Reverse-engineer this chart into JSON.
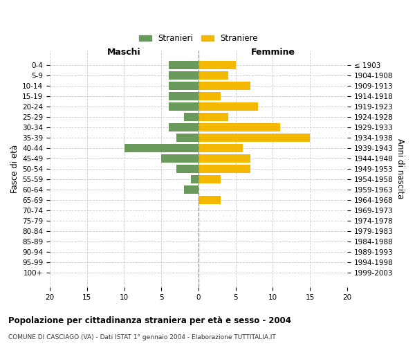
{
  "age_groups": [
    "0-4",
    "5-9",
    "10-14",
    "15-19",
    "20-24",
    "25-29",
    "30-34",
    "35-39",
    "40-44",
    "45-49",
    "50-54",
    "55-59",
    "60-64",
    "65-69",
    "70-74",
    "75-79",
    "80-84",
    "85-89",
    "90-94",
    "95-99",
    "100+"
  ],
  "birth_years": [
    "1999-2003",
    "1994-1998",
    "1989-1993",
    "1984-1988",
    "1979-1983",
    "1974-1978",
    "1969-1973",
    "1964-1968",
    "1959-1963",
    "1954-1958",
    "1949-1953",
    "1944-1948",
    "1939-1943",
    "1934-1938",
    "1929-1933",
    "1924-1928",
    "1919-1923",
    "1914-1918",
    "1909-1913",
    "1904-1908",
    "≤ 1903"
  ],
  "maschi": [
    4,
    4,
    4,
    4,
    4,
    2,
    4,
    3,
    10,
    5,
    3,
    1,
    2,
    0,
    0,
    0,
    0,
    0,
    0,
    0,
    0
  ],
  "femmine": [
    5,
    4,
    7,
    3,
    8,
    4,
    11,
    15,
    6,
    7,
    7,
    3,
    0,
    3,
    0,
    0,
    0,
    0,
    0,
    0,
    0
  ],
  "maschi_color": "#6a9a5b",
  "femmine_color": "#f5b800",
  "background_color": "#ffffff",
  "grid_color": "#cccccc",
  "title": "Popolazione per cittadinanza straniera per età e sesso - 2004",
  "subtitle": "COMUNE DI CASCIAGO (VA) - Dati ISTAT 1° gennaio 2004 - Elaborazione TUTTITALIA.IT",
  "xlabel_left": "Maschi",
  "xlabel_right": "Femmine",
  "ylabel_left": "Fasce di età",
  "ylabel_right": "Anni di nascita",
  "legend_maschi": "Stranieri",
  "legend_femmine": "Straniere",
  "xlim": 20
}
